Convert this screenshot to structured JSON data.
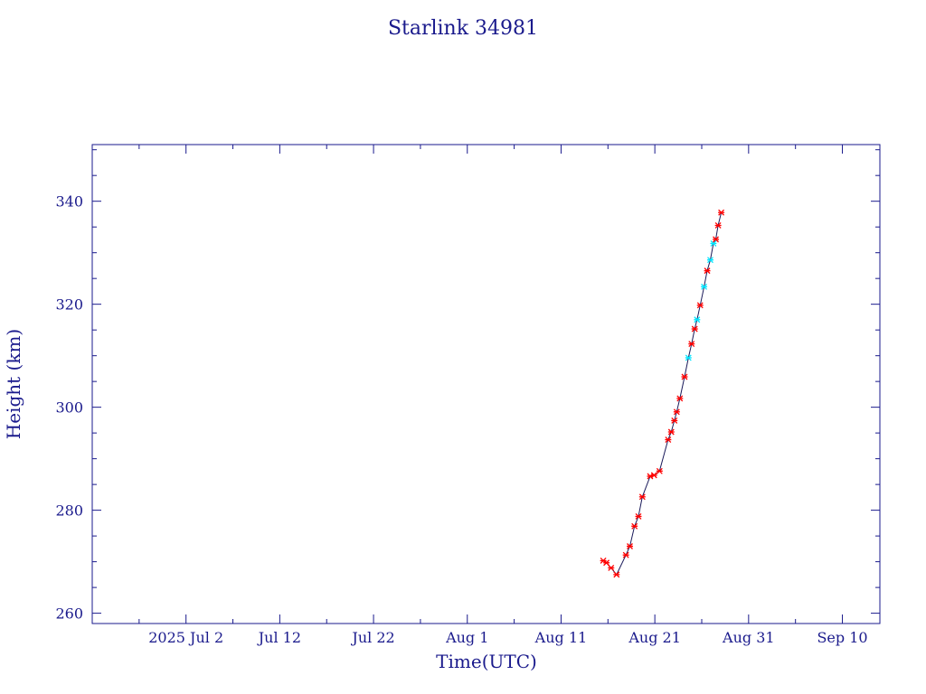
{
  "chart_data": {
    "type": "line",
    "title": "Starlink 34981",
    "xlabel": "Time(UTC)",
    "ylabel": "Height (km)",
    "xlim": [
      "2025-06-22",
      "2025-09-14"
    ],
    "ylim": [
      258,
      351
    ],
    "grid": false,
    "x_tick_labels": [
      "2025 Jul  2",
      "Jul 12",
      "Jul 22",
      "Aug  1",
      "Aug 11",
      "Aug 21",
      "Aug 31",
      "Sep 10"
    ],
    "y_tick_labels": [
      "260",
      "280",
      "300",
      "320",
      "340"
    ],
    "y_tick_values": [
      260,
      280,
      300,
      320,
      340
    ],
    "colors": {
      "axis": "#1a1a8c",
      "line": "#1a1a5a",
      "marker_primary": "#ff0000",
      "marker_secondary": "#00e5ff"
    },
    "series": [
      {
        "points": [
          {
            "x": "2025-08-15T12:00",
            "y": 270.2,
            "m": "r"
          },
          {
            "x": "2025-08-15T20:00",
            "y": 269.8,
            "m": "r"
          },
          {
            "x": "2025-08-16T08:00",
            "y": 268.8,
            "m": "r"
          },
          {
            "x": "2025-08-16T22:00",
            "y": 267.5,
            "m": "r"
          },
          {
            "x": "2025-08-17T22:00",
            "y": 271.3,
            "m": "r"
          },
          {
            "x": "2025-08-18T08:00",
            "y": 273.0,
            "m": "r"
          },
          {
            "x": "2025-08-18T20:00",
            "y": 276.9,
            "m": "r"
          },
          {
            "x": "2025-08-19T06:00",
            "y": 278.8,
            "m": "r"
          },
          {
            "x": "2025-08-19T16:00",
            "y": 282.6,
            "m": "r"
          },
          {
            "x": "2025-08-20T12:00",
            "y": 286.6,
            "m": "r"
          },
          {
            "x": "2025-08-20T22:00",
            "y": 286.8,
            "m": "r"
          },
          {
            "x": "2025-08-21T12:00",
            "y": 287.6,
            "m": "r"
          },
          {
            "x": "2025-08-22T10:00",
            "y": 293.7,
            "m": "r"
          },
          {
            "x": "2025-08-22T18:00",
            "y": 295.2,
            "m": "r"
          },
          {
            "x": "2025-08-23T02:00",
            "y": 297.4,
            "m": "r"
          },
          {
            "x": "2025-08-23T08:00",
            "y": 299.1,
            "m": "r"
          },
          {
            "x": "2025-08-23T16:00",
            "y": 301.7,
            "m": "r"
          },
          {
            "x": "2025-08-24T04:00",
            "y": 305.9,
            "m": "r"
          },
          {
            "x": "2025-08-24T14:00",
            "y": 309.6,
            "m": "c"
          },
          {
            "x": "2025-08-24T22:00",
            "y": 312.3,
            "m": "r"
          },
          {
            "x": "2025-08-25T06:00",
            "y": 315.2,
            "m": "r"
          },
          {
            "x": "2025-08-25T12:00",
            "y": 317.0,
            "m": "c"
          },
          {
            "x": "2025-08-25T20:00",
            "y": 319.8,
            "m": "r"
          },
          {
            "x": "2025-08-26T06:00",
            "y": 323.4,
            "m": "c"
          },
          {
            "x": "2025-08-26T14:00",
            "y": 326.5,
            "m": "r"
          },
          {
            "x": "2025-08-26T22:00",
            "y": 328.6,
            "m": "c"
          },
          {
            "x": "2025-08-27T06:00",
            "y": 331.8,
            "m": "c"
          },
          {
            "x": "2025-08-27T12:00",
            "y": 332.6,
            "m": "r"
          },
          {
            "x": "2025-08-27T18:00",
            "y": 335.3,
            "m": "r"
          },
          {
            "x": "2025-08-28T02:00",
            "y": 337.8,
            "m": "r"
          }
        ]
      }
    ]
  }
}
